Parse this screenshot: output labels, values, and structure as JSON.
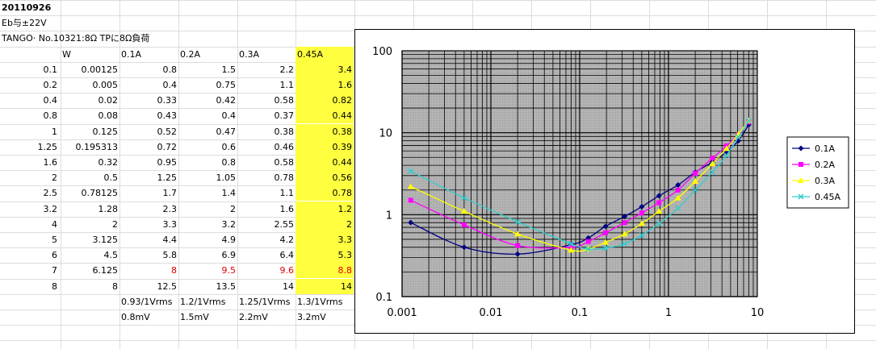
{
  "sheet": {
    "title": "20110926",
    "line2": "Eb与±22V",
    "line3": "TANGO· No.10321:8Ω TPに8Ω負荷",
    "headers": [
      "",
      "W",
      "0.1A",
      "0.2A",
      "0.3A",
      "0.45A"
    ],
    "rows": [
      [
        "0.1",
        "0.00125",
        "0.8",
        "1.5",
        "2.2",
        "3.4"
      ],
      [
        "0.2",
        "0.005",
        "0.4",
        "0.75",
        "1.1",
        "1.6"
      ],
      [
        "0.4",
        "0.02",
        "0.33",
        "0.42",
        "0.58",
        "0.82"
      ],
      [
        "0.8",
        "0.08",
        "0.43",
        "0.4",
        "0.37",
        "0.44"
      ],
      [
        "1",
        "0.125",
        "0.52",
        "0.47",
        "0.38",
        "0.38"
      ],
      [
        "1.25",
        "0.195313",
        "0.72",
        "0.6",
        "0.46",
        "0.39"
      ],
      [
        "1.6",
        "0.32",
        "0.95",
        "0.8",
        "0.58",
        "0.44"
      ],
      [
        "2",
        "0.5",
        "1.25",
        "1.05",
        "0.78",
        "0.56"
      ],
      [
        "2.5",
        "0.78125",
        "1.7",
        "1.4",
        "1.1",
        "0.78"
      ],
      [
        "3.2",
        "1.28",
        "2.3",
        "2",
        "1.6",
        "1.2"
      ],
      [
        "4",
        "2",
        "3.3",
        "3.2",
        "2.55",
        "2"
      ],
      [
        "5",
        "3.125",
        "4.4",
        "4.9",
        "4.2",
        "3.3"
      ],
      [
        "6",
        "4.5",
        "5.8",
        "6.9",
        "6.4",
        "5.3"
      ],
      [
        "7",
        "6.125",
        "8",
        "9.5",
        "9.6",
        "8.8"
      ],
      [
        "8",
        "8",
        "12.5",
        "13.5",
        "14",
        "14"
      ]
    ],
    "sens": [
      "0.93/1Vrms",
      "1.2/1Vrms",
      "1.25/1Vrms",
      "1.3/1Vrms"
    ],
    "noise": [
      "0.8mV",
      "1.5mV",
      "2.2mV",
      "3.2mV"
    ]
  },
  "chart_data": {
    "type": "scatter",
    "x_scale": "log",
    "y_scale": "log",
    "xlim": [
      0.001,
      10
    ],
    "ylim": [
      0.1,
      100
    ],
    "x_tick_labels": [
      "0.001",
      "0.01",
      "0.1",
      "1",
      "10"
    ],
    "y_tick_labels": [
      "0.1",
      "1",
      "10",
      "100"
    ],
    "grid": true,
    "legend_position": "right",
    "x": [
      0.00125,
      0.005,
      0.02,
      0.08,
      0.125,
      0.195313,
      0.32,
      0.5,
      0.78125,
      1.28,
      2,
      3.125,
      4.5,
      6.125,
      8
    ],
    "series": [
      {
        "name": "0.1A",
        "color": "#000080",
        "marker": "diamond",
        "values": [
          0.8,
          0.4,
          0.33,
          0.43,
          0.52,
          0.72,
          0.95,
          1.25,
          1.7,
          2.3,
          3.3,
          4.4,
          5.8,
          8,
          12.5
        ]
      },
      {
        "name": "0.2A",
        "color": "#ff00ff",
        "marker": "square",
        "values": [
          1.5,
          0.75,
          0.42,
          0.4,
          0.47,
          0.6,
          0.8,
          1.05,
          1.4,
          2,
          3.2,
          4.9,
          6.9,
          9.5,
          13.5
        ]
      },
      {
        "name": "0.3A",
        "color": "#ffff00",
        "marker": "triangle",
        "values": [
          2.2,
          1.1,
          0.58,
          0.37,
          0.38,
          0.46,
          0.58,
          0.78,
          1.1,
          1.6,
          2.55,
          4.2,
          6.4,
          9.6,
          14
        ]
      },
      {
        "name": "0.45A",
        "color": "#33cccc",
        "marker": "x",
        "values": [
          3.4,
          1.6,
          0.82,
          0.44,
          0.38,
          0.39,
          0.44,
          0.56,
          0.78,
          1.2,
          2,
          3.3,
          5.3,
          8.8,
          14
        ]
      }
    ]
  }
}
